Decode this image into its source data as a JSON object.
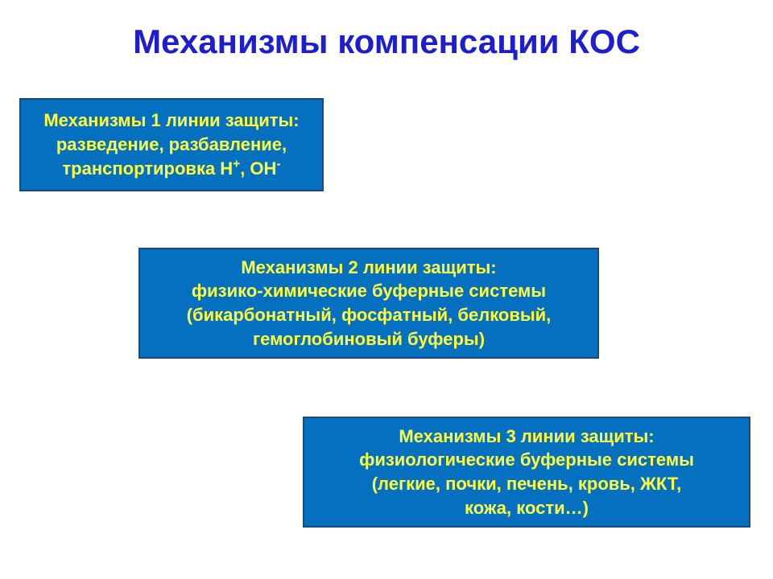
{
  "title": "Механизмы компенсации КОС",
  "boxes": {
    "b1": {
      "line1": "Механизмы 1 линии защиты:",
      "line2": "разведение, разбавление,",
      "line3_pre": "транспортировка Н",
      "line3_sup1": "+",
      "line3_mid": ", ОН",
      "line3_sup2": "-"
    },
    "b2": {
      "line1": "Механизмы 2 линии защиты:",
      "line2": "физико-химические буферные системы",
      "line3": "(бикарбонатный, фосфатный, белковый,",
      "line4": "гемоглобиновый буферы)"
    },
    "b3": {
      "line1": "Механизмы 3 линии защиты:",
      "line2": "физиологические буферные системы",
      "line3": "(легкие, почки, печень, кровь, ЖКТ,",
      "line4": "кожа, кости…)"
    }
  },
  "style": {
    "title_color": "#1e1ecc",
    "title_fontsize": 42,
    "box_bg": "#0570c0",
    "box_border": "#1a4a7a",
    "box_text_color": "#ffff40",
    "box_fontsize": 22,
    "background": "#ffffff"
  }
}
